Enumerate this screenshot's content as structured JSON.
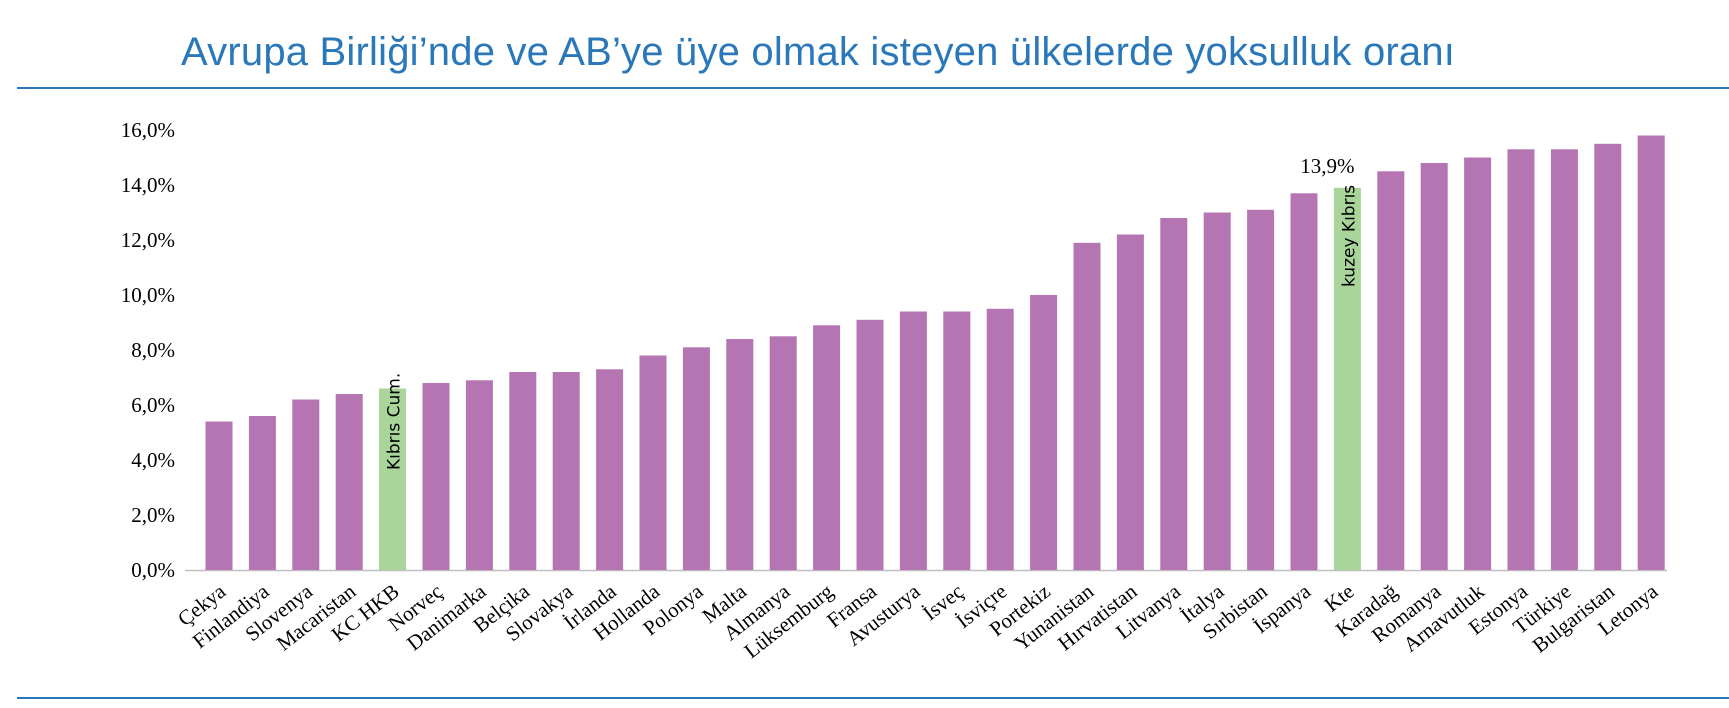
{
  "page": {
    "title": "Avrupa Birliği’nde ve AB’ye üye olmak isteyen ülkelerde yoksulluk oranı"
  },
  "chart_data": {
    "type": "bar",
    "categories": [
      "Çekya",
      "Finlandiya",
      "Slovenya",
      "Macaristan",
      "KC HKB",
      "Norveç",
      "Danimarka",
      "Belçika",
      "Slovakya",
      "İrlanda",
      "Hollanda",
      "Polonya",
      "Malta",
      "Almanya",
      "Lüksemburg",
      "Fransa",
      "Avusturya",
      "İsveç",
      "İsviçre",
      "Portekiz",
      "Yunanistan",
      "Hırvatistan",
      "Litvanya",
      "İtalya",
      "Sırbistan",
      "İspanya",
      "Kte",
      "Karadağ",
      "Romanya",
      "Arnavutluk",
      "Estonya",
      "Türkiye",
      "Bulgaristan",
      "Letonya"
    ],
    "values": [
      5.4,
      5.6,
      6.2,
      6.4,
      6.6,
      6.8,
      6.9,
      7.2,
      7.2,
      7.3,
      7.8,
      8.1,
      8.4,
      8.5,
      8.9,
      9.1,
      9.4,
      9.4,
      9.5,
      10.0,
      11.9,
      12.2,
      12.8,
      13.0,
      13.1,
      13.7,
      13.9,
      14.5,
      14.8,
      15.0,
      15.3,
      15.3,
      15.5,
      15.8
    ],
    "highlight": [
      {
        "index": 4,
        "label": "Kıbrıs Cum."
      },
      {
        "index": 26,
        "label": "kuzey Kıbrıs",
        "value_label": "13,9%"
      }
    ],
    "y_ticks": [
      "0,0%",
      "2,0%",
      "4,0%",
      "6,0%",
      "8,0%",
      "10,0%",
      "12,0%",
      "14,0%",
      "16,0%"
    ],
    "ylim": [
      0,
      16
    ],
    "y_unit": "%",
    "grid": false,
    "colors": {
      "bar": "#b574b2",
      "highlight": "#a9d59a",
      "axis": "#bfbfbf",
      "text": "#000000",
      "title": "#2a78b9",
      "rule": "#2a78b9"
    }
  }
}
